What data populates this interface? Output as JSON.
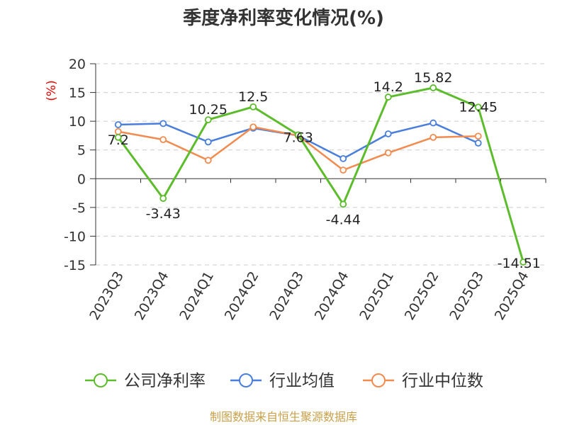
{
  "chart_data": {
    "type": "line",
    "title": "季度净利率变化情况(%)",
    "ylabel": "(%)",
    "ylim": [
      -15,
      20
    ],
    "yticks": [
      20,
      15,
      10,
      5,
      0,
      -5,
      -10,
      -15
    ],
    "grid": true,
    "legend_position": "bottom",
    "categories": [
      "2023Q3",
      "2023Q4",
      "2024Q1",
      "2024Q2",
      "2024Q3",
      "2024Q4",
      "2025Q1",
      "2025Q2",
      "2025Q3",
      "2025Q4"
    ],
    "series": [
      {
        "name": "公司净利率",
        "color": "#5cbc2c",
        "values": [
          7.2,
          -3.43,
          10.25,
          12.5,
          7.63,
          -4.44,
          14.2,
          15.82,
          12.45,
          -14.51
        ],
        "data_labels": [
          "7.2",
          "-3.43",
          "10.25",
          "12.5",
          "7.63",
          "-4.44",
          "14.2",
          "15.82",
          "12.45",
          "-14.51"
        ]
      },
      {
        "name": "行业均值",
        "color": "#4a7edc",
        "values": [
          9.4,
          9.6,
          6.4,
          8.8,
          7.5,
          3.5,
          7.8,
          9.7,
          6.2,
          null
        ]
      },
      {
        "name": "行业中位数",
        "color": "#f28b50",
        "values": [
          8.2,
          6.8,
          3.2,
          9.0,
          7.5,
          1.5,
          4.5,
          7.2,
          7.4,
          null
        ]
      }
    ],
    "source": "制图数据来自恒生聚源数据库"
  }
}
